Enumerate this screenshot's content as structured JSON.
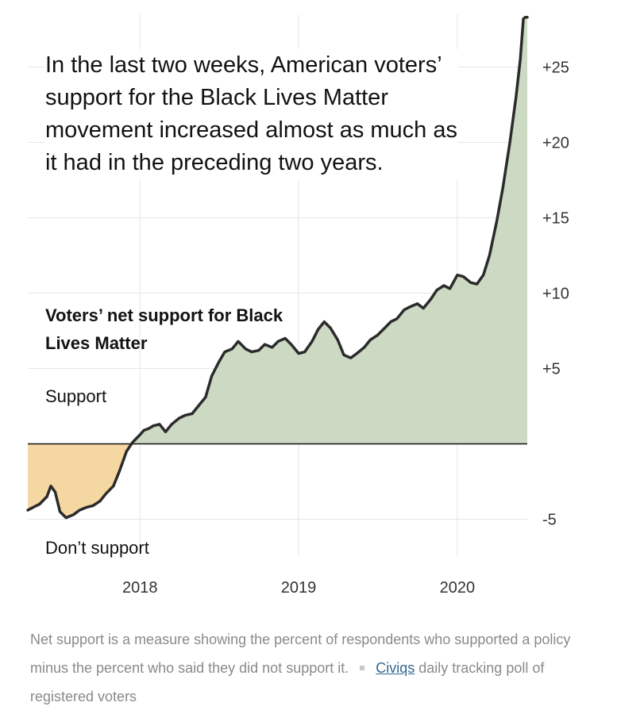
{
  "headline": "In the last two weeks, American voters’ support for the Black Lives Matter movement increased almost as much as it had in the preceding two years.",
  "footnote": {
    "text": "Net support is a measure showing the percent of respondents who supported a policy minus the percent who said they did not support it.",
    "source_link": "Civiqs",
    "source_rest": "daily tracking poll of registered voters"
  },
  "colors": {
    "support_fill": "#ccd9c3",
    "oppose_fill": "#f5d7a2",
    "line": "#2b2b2b",
    "link": "#326891"
  },
  "chart_data": {
    "type": "area",
    "title": "Voters’ net support for Black Lives Matter",
    "positive_label": "Support",
    "negative_label": "Don’t support",
    "xlabel": "",
    "ylabel": "",
    "xlim": [
      "2017-04-18",
      "2020-06-10"
    ],
    "ylim": [
      -7.5,
      28.5
    ],
    "x_ticks": [
      "2018-01-01",
      "2019-01-01",
      "2020-01-01"
    ],
    "x_tick_labels": [
      "2018",
      "2019",
      "2020"
    ],
    "y_ticks": [
      -5,
      5,
      10,
      15,
      20,
      25
    ],
    "y_tick_labels": [
      "-5",
      "+5",
      "+10",
      "+15",
      "+20",
      "+25"
    ],
    "grid": true,
    "series": [
      {
        "x": [
          "2017-04-18",
          "2017-05-01",
          "2017-05-15",
          "2017-06-01",
          "2017-06-10",
          "2017-06-20",
          "2017-07-01",
          "2017-07-15",
          "2017-08-01",
          "2017-08-15",
          "2017-09-01",
          "2017-09-15",
          "2017-10-01",
          "2017-10-15",
          "2017-11-01",
          "2017-11-15",
          "2017-12-01",
          "2017-12-15",
          "2018-01-01",
          "2018-01-10",
          "2018-01-20",
          "2018-02-01",
          "2018-02-15",
          "2018-03-01",
          "2018-03-15",
          "2018-04-01",
          "2018-04-15",
          "2018-05-01",
          "2018-05-15",
          "2018-06-01",
          "2018-06-15",
          "2018-07-01",
          "2018-07-15",
          "2018-08-01",
          "2018-08-15",
          "2018-09-01",
          "2018-09-15",
          "2018-10-01",
          "2018-10-15",
          "2018-11-01",
          "2018-11-15",
          "2018-12-01",
          "2018-12-15",
          "2019-01-01",
          "2019-01-15",
          "2019-02-01",
          "2019-02-15",
          "2019-03-01",
          "2019-03-15",
          "2019-04-01",
          "2019-04-15",
          "2019-05-01",
          "2019-05-15",
          "2019-06-01",
          "2019-06-15",
          "2019-07-01",
          "2019-07-15",
          "2019-08-01",
          "2019-08-15",
          "2019-09-01",
          "2019-09-15",
          "2019-10-01",
          "2019-10-15",
          "2019-11-01",
          "2019-11-15",
          "2019-12-01",
          "2019-12-15",
          "2020-01-01",
          "2020-01-15",
          "2020-02-01",
          "2020-02-15",
          "2020-03-01",
          "2020-03-15",
          "2020-04-01",
          "2020-04-15",
          "2020-05-01",
          "2020-05-15",
          "2020-05-25",
          "2020-06-01",
          "2020-06-05",
          "2020-06-07",
          "2020-06-09",
          "2020-06-10"
        ],
        "y": [
          -4.4,
          -4.2,
          -4.0,
          -3.5,
          -2.8,
          -3.2,
          -4.5,
          -4.9,
          -4.7,
          -4.4,
          -4.2,
          -4.1,
          -3.8,
          -3.3,
          -2.8,
          -1.8,
          -0.5,
          0.1,
          0.6,
          0.9,
          1.0,
          1.2,
          1.3,
          0.8,
          1.3,
          1.7,
          1.9,
          2.0,
          2.5,
          3.1,
          4.5,
          5.4,
          6.1,
          6.3,
          6.8,
          6.3,
          6.1,
          6.2,
          6.6,
          6.4,
          6.8,
          7.0,
          6.6,
          6.0,
          6.1,
          6.8,
          7.6,
          8.1,
          7.7,
          6.9,
          5.9,
          5.7,
          6.0,
          6.4,
          6.9,
          7.2,
          7.6,
          8.1,
          8.3,
          8.9,
          9.1,
          9.3,
          9.0,
          9.6,
          10.2,
          10.5,
          10.3,
          11.2,
          11.1,
          10.7,
          10.6,
          11.2,
          12.5,
          14.8,
          17.0,
          20.0,
          23.0,
          25.5,
          28.2,
          28.3,
          28.3,
          28.3,
          28.3
        ]
      }
    ]
  }
}
